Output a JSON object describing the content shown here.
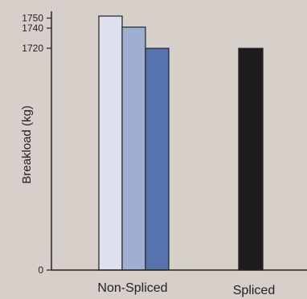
{
  "chart_data": {
    "type": "bar",
    "title": "",
    "xlabel": "",
    "ylabel": "Breakload (kg)",
    "grid": false,
    "legend": "none",
    "y_axis": {
      "scale": "broken",
      "ticks": [
        0,
        1720,
        1740,
        1750
      ],
      "tick_labels": [
        "0",
        "1720",
        "1740",
        "1750"
      ]
    },
    "categories": [
      "Non-Spliced",
      "Spliced"
    ],
    "groups": [
      {
        "category": "Non-Spliced",
        "bars": [
          {
            "value": 1752,
            "color": "#dde0ee"
          },
          {
            "value": 1741,
            "color": "#9eafd2"
          },
          {
            "value": 1719,
            "color": "#5673ad"
          }
        ]
      },
      {
        "category": "Spliced",
        "bars": [
          {
            "value": 1719,
            "color": "#1e1c1e"
          }
        ]
      }
    ],
    "colors": {
      "axis": "#222222",
      "background": "#d6cfca",
      "bar_stroke": "#222222"
    }
  }
}
